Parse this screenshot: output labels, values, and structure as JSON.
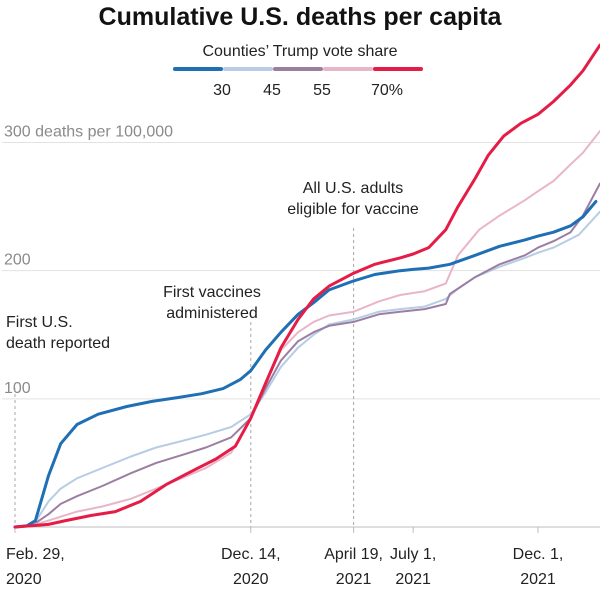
{
  "chart_data": {
    "type": "line",
    "title": "Cumulative U.S. deaths per capita",
    "legend_title": "Counties’ Trump vote share",
    "legend_labels": [
      "30",
      "45",
      "55",
      "70%"
    ],
    "legend_placement": "top-center",
    "ylabel_unit": "deaths per 100,000",
    "ylim": [
      0,
      380
    ],
    "y_ticks": [
      {
        "value": 100,
        "label": "100"
      },
      {
        "value": 200,
        "label": "200"
      },
      {
        "value": 300,
        "label": "300 deaths per 100,000"
      }
    ],
    "grid": true,
    "xlim": [
      "2020-02-29",
      "2022-02-15"
    ],
    "x_ticks": [
      {
        "date": "2020-02-29",
        "line1": "Feb. 29,",
        "line2": "2020"
      },
      {
        "date": "2020-12-14",
        "line1": "Dec. 14,",
        "line2": "2020"
      },
      {
        "date": "2021-04-19",
        "line1": "April 19,",
        "line2": "2021"
      },
      {
        "date": "2021-07-01",
        "line1": "July 1,",
        "line2": "2021"
      },
      {
        "date": "2021-12-01",
        "line1": "Dec. 1,",
        "line2": "2021"
      }
    ],
    "annotations": [
      {
        "date": "2020-02-29",
        "lines": [
          "First U.S.",
          "death reported"
        ]
      },
      {
        "date": "2020-12-14",
        "lines": [
          "First vaccines",
          "administered"
        ]
      },
      {
        "date": "2021-04-19",
        "lines": [
          "All U.S. adults",
          "eligible for vaccine"
        ]
      }
    ],
    "series": [
      {
        "name": "30",
        "color": "#1f6fb4",
        "x": [
          "2020-02-29",
          "2020-03-15",
          "2020-03-25",
          "2020-04-10",
          "2020-04-25",
          "2020-05-15",
          "2020-06-10",
          "2020-07-15",
          "2020-08-15",
          "2020-09-15",
          "2020-10-15",
          "2020-11-10",
          "2020-12-01",
          "2020-12-14",
          "2021-01-01",
          "2021-01-20",
          "2021-02-10",
          "2021-03-01",
          "2021-03-20",
          "2021-04-19",
          "2021-05-15",
          "2021-06-15",
          "2021-07-01",
          "2021-07-20",
          "2021-08-15",
          "2021-09-15",
          "2021-10-15",
          "2021-11-15",
          "2021-12-01",
          "2021-12-20",
          "2022-01-10",
          "2022-01-25",
          "2022-02-10"
        ],
        "values": [
          0,
          1,
          5,
          40,
          65,
          80,
          88,
          94,
          98,
          101,
          104,
          108,
          115,
          122,
          138,
          152,
          166,
          175,
          185,
          192,
          197,
          200,
          201,
          202,
          205,
          212,
          219,
          224,
          227,
          230,
          235,
          242,
          254
        ]
      },
      {
        "name": "45",
        "color": "#b6cde4",
        "x": [
          "2020-02-29",
          "2020-03-15",
          "2020-03-25",
          "2020-04-10",
          "2020-04-25",
          "2020-05-15",
          "2020-06-15",
          "2020-07-20",
          "2020-08-20",
          "2020-09-20",
          "2020-10-20",
          "2020-11-20",
          "2020-12-14",
          "2021-01-01",
          "2021-01-20",
          "2021-02-10",
          "2021-03-01",
          "2021-03-20",
          "2021-04-19",
          "2021-05-20",
          "2021-06-15",
          "2021-07-15",
          "2021-08-10",
          "2021-08-25",
          "2021-09-15",
          "2021-10-15",
          "2021-11-15",
          "2021-12-01",
          "2021-12-20",
          "2022-01-20",
          "2022-02-15"
        ],
        "values": [
          0,
          1,
          4,
          20,
          30,
          38,
          46,
          55,
          62,
          67,
          72,
          78,
          88,
          105,
          125,
          140,
          150,
          158,
          162,
          168,
          170,
          172,
          178,
          186,
          195,
          203,
          210,
          214,
          218,
          228,
          246
        ]
      },
      {
        "name": "55",
        "color": "#9c7ea3",
        "x": [
          "2020-02-29",
          "2020-03-15",
          "2020-03-25",
          "2020-04-10",
          "2020-04-25",
          "2020-05-15",
          "2020-06-15",
          "2020-07-20",
          "2020-08-20",
          "2020-09-20",
          "2020-10-20",
          "2020-11-20",
          "2020-12-14",
          "2021-01-01",
          "2021-01-20",
          "2021-02-10",
          "2021-03-01",
          "2021-03-20",
          "2021-04-19",
          "2021-05-20",
          "2021-06-15",
          "2021-07-15",
          "2021-08-10",
          "2021-08-15",
          "2021-08-25",
          "2021-09-15",
          "2021-10-15",
          "2021-11-15",
          "2021-12-01",
          "2021-12-20",
          "2022-01-10",
          "2022-01-25",
          "2022-02-15"
        ],
        "values": [
          0,
          1,
          3,
          10,
          18,
          24,
          32,
          42,
          50,
          56,
          62,
          70,
          85,
          108,
          130,
          145,
          152,
          157,
          160,
          166,
          168,
          170,
          174,
          182,
          186,
          195,
          205,
          212,
          218,
          223,
          230,
          243,
          268
        ]
      },
      {
        "name": "70%",
        "color": "#e9b5c9",
        "x": [
          "2020-02-29",
          "2020-03-15",
          "2020-03-25",
          "2020-04-10",
          "2020-04-25",
          "2020-05-15",
          "2020-06-15",
          "2020-07-20",
          "2020-08-20",
          "2020-09-20",
          "2020-10-20",
          "2020-11-20",
          "2020-12-14",
          "2021-01-01",
          "2021-01-20",
          "2021-02-10",
          "2021-03-01",
          "2021-03-20",
          "2021-04-19",
          "2021-05-20",
          "2021-06-15",
          "2021-07-15",
          "2021-08-10",
          "2021-08-25",
          "2021-09-20",
          "2021-10-15",
          "2021-11-15",
          "2021-12-01",
          "2021-12-20",
          "2022-01-10",
          "2022-01-25",
          "2022-02-15"
        ],
        "values": [
          0,
          1,
          2,
          5,
          8,
          12,
          16,
          22,
          30,
          38,
          46,
          58,
          85,
          112,
          138,
          152,
          160,
          165,
          168,
          176,
          181,
          184,
          190,
          212,
          232,
          243,
          255,
          262,
          270,
          283,
          292,
          309
        ]
      },
      {
        "name": "",
        "color": "#e51c45",
        "x": [
          "2020-02-29",
          "2020-03-20",
          "2020-04-10",
          "2020-05-01",
          "2020-06-01",
          "2020-07-01",
          "2020-08-01",
          "2020-09-01",
          "2020-10-01",
          "2020-11-01",
          "2020-11-25",
          "2020-12-14",
          "2021-01-01",
          "2021-01-20",
          "2021-02-10",
          "2021-03-01",
          "2021-03-20",
          "2021-04-19",
          "2021-05-15",
          "2021-06-15",
          "2021-07-01",
          "2021-07-20",
          "2021-08-10",
          "2021-08-25",
          "2021-09-15",
          "2021-10-01",
          "2021-10-20",
          "2021-11-10",
          "2021-12-01",
          "2021-12-20",
          "2022-01-10",
          "2022-01-25",
          "2022-02-15"
        ],
        "values": [
          0,
          1,
          2,
          5,
          9,
          12,
          20,
          33,
          43,
          53,
          63,
          85,
          112,
          140,
          162,
          178,
          188,
          198,
          205,
          210,
          213,
          218,
          232,
          250,
          272,
          290,
          305,
          315,
          322,
          332,
          345,
          356,
          376
        ]
      }
    ]
  }
}
